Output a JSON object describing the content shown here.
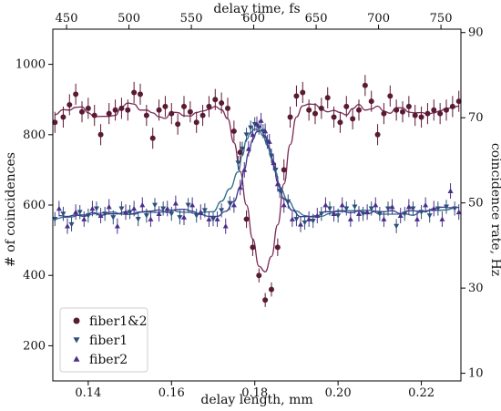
{
  "chart_data": {
    "type": "scatter",
    "xlabel": "delay length, mm",
    "ylabel_left": "# of coincidences",
    "xlabel_top": "delay time, fs",
    "ylabel_right": "coincidence rate, Hz",
    "xlim": [
      0.1315,
      0.2295
    ],
    "ylim": [
      100,
      1100
    ],
    "top_xlim": [
      439.0,
      766.0
    ],
    "right_ylim": [
      8.2,
      90.8
    ],
    "x_ticks": [
      0.14,
      0.16,
      0.18,
      0.2,
      0.22
    ],
    "x_tick_labels": [
      "0.14",
      "0.16",
      "0.18",
      "0.20",
      "0.22"
    ],
    "y_ticks": [
      200,
      400,
      600,
      800,
      1000
    ],
    "y_tick_labels": [
      "200",
      "400",
      "600",
      "800",
      "1000"
    ],
    "top_ticks": [
      450,
      500,
      550,
      600,
      650,
      700,
      750
    ],
    "top_tick_labels": [
      "450",
      "500",
      "550",
      "600",
      "650",
      "700",
      "750"
    ],
    "right_ticks": [
      10,
      30,
      50,
      70,
      90
    ],
    "right_tick_labels": [
      "10",
      "30",
      "50",
      "70",
      "90"
    ],
    "legend_position": "lower-left",
    "grid": false,
    "series": [
      {
        "name": "fiber1&2",
        "marker": "circle",
        "color": "#5a1a32",
        "fit_color": "#7a2a55",
        "x": [
          0.132,
          0.134,
          0.1355,
          0.137,
          0.1385,
          0.14,
          0.1415,
          0.143,
          0.145,
          0.1465,
          0.148,
          0.1495,
          0.151,
          0.1525,
          0.154,
          0.1555,
          0.157,
          0.1585,
          0.16,
          0.1615,
          0.163,
          0.1645,
          0.166,
          0.1675,
          0.169,
          0.1705,
          0.172,
          0.1735,
          0.175,
          0.1765,
          0.178,
          0.1795,
          0.181,
          0.1825,
          0.184,
          0.1855,
          0.187,
          0.1885,
          0.19,
          0.1915,
          0.193,
          0.1945,
          0.196,
          0.1975,
          0.199,
          0.2005,
          0.202,
          0.2035,
          0.205,
          0.2065,
          0.208,
          0.2095,
          0.211,
          0.2125,
          0.214,
          0.2155,
          0.217,
          0.2185,
          0.22,
          0.2215,
          0.223,
          0.2245,
          0.226,
          0.2275,
          0.229
        ],
        "y": [
          835,
          850,
          885,
          915,
          865,
          875,
          855,
          800,
          860,
          870,
          875,
          870,
          920,
          915,
          855,
          790,
          870,
          880,
          860,
          830,
          880,
          865,
          835,
          855,
          880,
          900,
          890,
          875,
          810,
          750,
          560,
          480,
          400,
          330,
          360,
          480,
          700,
          850,
          910,
          920,
          870,
          860,
          875,
          905,
          850,
          835,
          880,
          845,
          870,
          940,
          895,
          800,
          860,
          910,
          870,
          865,
          880,
          855,
          850,
          860,
          870,
          860,
          870,
          880,
          895
        ],
        "err": [
          30,
          30,
          30,
          30,
          30,
          30,
          30,
          30,
          30,
          30,
          30,
          30,
          30,
          30,
          30,
          30,
          30,
          30,
          30,
          30,
          30,
          30,
          30,
          30,
          30,
          30,
          30,
          30,
          30,
          30,
          25,
          25,
          20,
          20,
          20,
          25,
          30,
          30,
          30,
          30,
          30,
          30,
          30,
          30,
          30,
          30,
          30,
          30,
          30,
          30,
          30,
          30,
          30,
          30,
          30,
          30,
          30,
          30,
          30,
          30,
          30,
          30,
          30,
          30,
          30
        ]
      },
      {
        "name": "fiber1",
        "marker": "triangle-down",
        "color": "#2c4f7a",
        "fit_color": "#2e6e8a",
        "x": [
          0.132,
          0.134,
          0.136,
          0.138,
          0.14,
          0.142,
          0.144,
          0.146,
          0.148,
          0.15,
          0.152,
          0.154,
          0.156,
          0.158,
          0.16,
          0.162,
          0.164,
          0.166,
          0.168,
          0.17,
          0.172,
          0.174,
          0.176,
          0.177,
          0.178,
          0.179,
          0.18,
          0.181,
          0.182,
          0.183,
          0.184,
          0.185,
          0.186,
          0.188,
          0.19,
          0.192,
          0.194,
          0.196,
          0.198,
          0.2,
          0.202,
          0.204,
          0.206,
          0.208,
          0.21,
          0.212,
          0.214,
          0.216,
          0.218,
          0.22,
          0.222,
          0.224,
          0.226,
          0.228
        ],
        "y": [
          560,
          575,
          545,
          580,
          570,
          590,
          575,
          565,
          590,
          580,
          560,
          570,
          600,
          590,
          575,
          565,
          600,
          570,
          585,
          560,
          585,
          605,
          720,
          760,
          800,
          820,
          830,
          820,
          810,
          780,
          740,
          700,
          640,
          610,
          560,
          550,
          555,
          575,
          590,
          570,
          590,
          595,
          575,
          590,
          575,
          590,
          540,
          575,
          590,
          580,
          570,
          590,
          595,
          590
        ],
        "err": [
          20,
          20,
          20,
          20,
          20,
          20,
          20,
          20,
          20,
          20,
          20,
          20,
          20,
          20,
          20,
          20,
          20,
          20,
          20,
          20,
          20,
          20,
          20,
          20,
          20,
          20,
          20,
          20,
          20,
          20,
          20,
          20,
          20,
          20,
          20,
          20,
          20,
          20,
          20,
          20,
          20,
          20,
          20,
          20,
          20,
          20,
          20,
          20,
          20,
          20,
          20,
          20,
          20,
          20
        ]
      },
      {
        "name": "fiber2",
        "marker": "triangle-up",
        "color": "#4a2f8a",
        "fit_color": "#3a3a90",
        "x": [
          0.133,
          0.135,
          0.137,
          0.139,
          0.141,
          0.143,
          0.145,
          0.147,
          0.149,
          0.151,
          0.153,
          0.155,
          0.157,
          0.159,
          0.161,
          0.163,
          0.165,
          0.167,
          0.169,
          0.171,
          0.173,
          0.175,
          0.1765,
          0.1775,
          0.1785,
          0.1795,
          0.1805,
          0.1815,
          0.1825,
          0.1835,
          0.1845,
          0.1855,
          0.187,
          0.189,
          0.191,
          0.193,
          0.195,
          0.197,
          0.199,
          0.201,
          0.203,
          0.205,
          0.207,
          0.209,
          0.211,
          0.213,
          0.215,
          0.217,
          0.219,
          0.221,
          0.223,
          0.225,
          0.227,
          0.229
        ],
        "y": [
          590,
          540,
          580,
          560,
          590,
          570,
          595,
          540,
          580,
          590,
          600,
          560,
          575,
          590,
          605,
          565,
          600,
          580,
          560,
          560,
          540,
          600,
          650,
          700,
          760,
          800,
          830,
          840,
          810,
          780,
          720,
          660,
          600,
          560,
          545,
          560,
          570,
          600,
          575,
          600,
          560,
          575,
          580,
          600,
          560,
          595,
          570,
          595,
          560,
          600,
          590,
          560,
          640,
          580
        ],
        "err": [
          22,
          22,
          22,
          22,
          22,
          22,
          22,
          22,
          22,
          22,
          22,
          22,
          22,
          22,
          22,
          22,
          22,
          22,
          22,
          22,
          22,
          22,
          22,
          22,
          22,
          22,
          22,
          22,
          22,
          22,
          22,
          22,
          22,
          22,
          22,
          22,
          22,
          22,
          22,
          22,
          22,
          22,
          22,
          22,
          22,
          22,
          22,
          22,
          22,
          22,
          22,
          22,
          22,
          22
        ]
      }
    ]
  }
}
